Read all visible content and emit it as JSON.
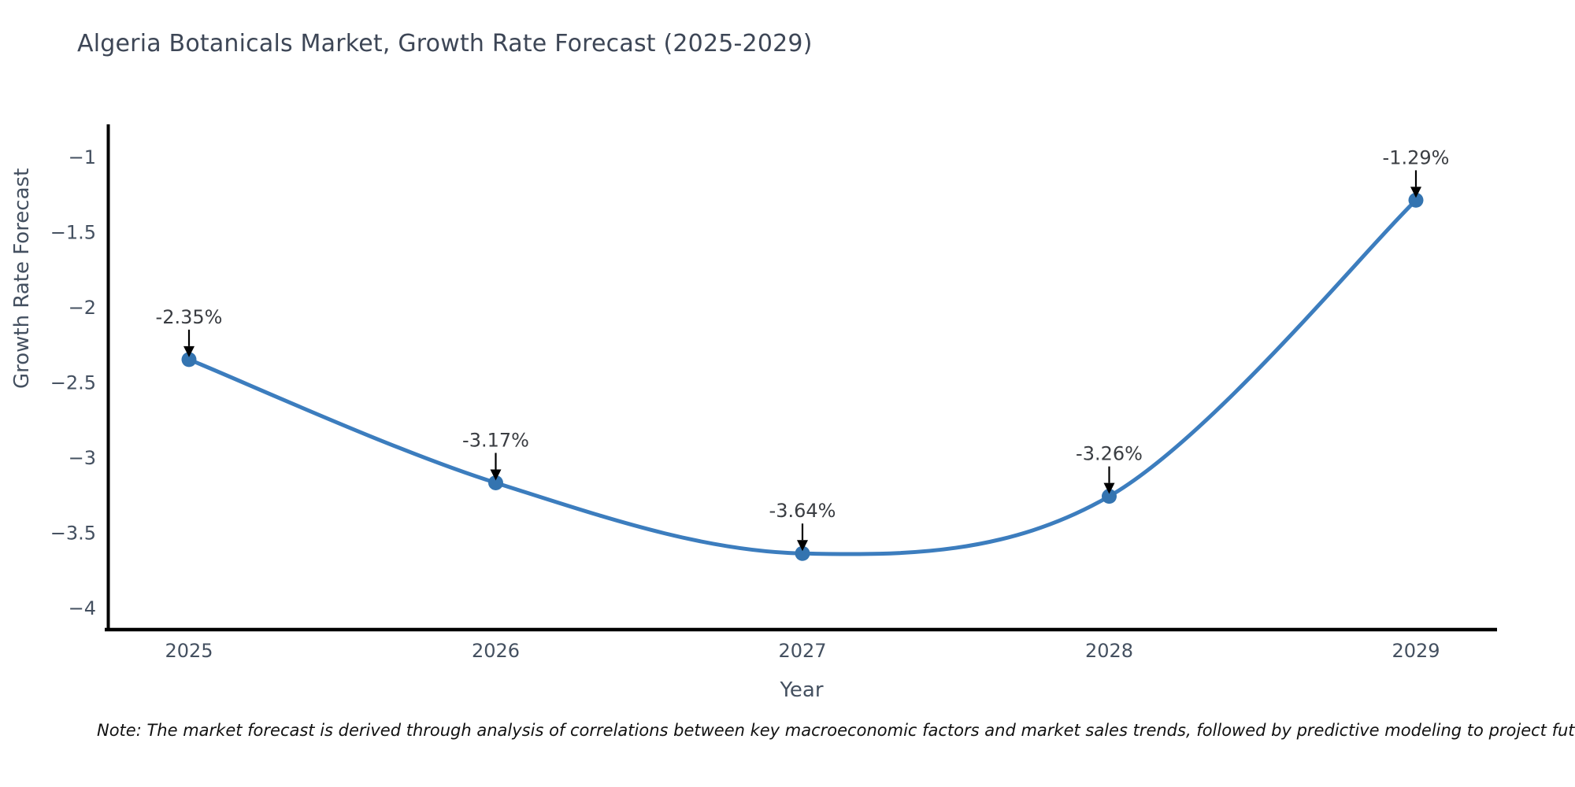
{
  "title": "Algeria Botanicals Market, Growth Rate Forecast (2025-2029)",
  "footnote": "Note: The market forecast is derived through analysis of correlations between key macroeconomic factors and market sales trends, followed by predictive modeling to project future sales",
  "chart_data": {
    "type": "line",
    "title": "Algeria Botanicals Market, Growth Rate Forecast (2025-2029)",
    "xlabel": "Year",
    "ylabel": "Growth Rate Forecast",
    "categories": [
      "2025",
      "2026",
      "2027",
      "2028",
      "2029"
    ],
    "series": [
      {
        "name": "Growth Rate Forecast",
        "values": [
          -2.35,
          -3.17,
          -3.64,
          -3.26,
          -1.29
        ]
      }
    ],
    "point_labels": [
      "-2.35%",
      "-3.17%",
      "-3.64%",
      "-3.26%",
      "-1.29%"
    ],
    "yticks": [
      -1,
      -1.5,
      -2,
      -2.5,
      -3,
      -3.5,
      -4
    ],
    "ytick_labels": [
      "−1",
      "−1.5",
      "−2",
      "−2.5",
      "−3",
      "−3.5",
      "−4"
    ],
    "ylim": [
      -4.17,
      -0.81
    ],
    "grid": false,
    "legend_position": "none",
    "line_color": "#3C7DBE",
    "marker_color": "#3474B0",
    "axis_color": "#000000",
    "tick_label_color": "#445060",
    "annotation_text_color": "#3A3D42",
    "annotation_arrow_color": "#000000"
  }
}
